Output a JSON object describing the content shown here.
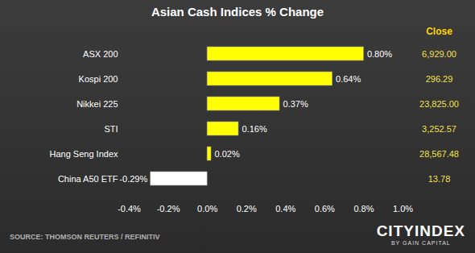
{
  "chart_data": {
    "type": "bar",
    "orientation": "horizontal",
    "title": "Asian Cash Indices % Change",
    "categories": [
      "ASX 200",
      "Kospi 200",
      "Nikkei 225",
      "STI",
      "Hang Seng Index",
      "China A50 ETF"
    ],
    "values": [
      0.8,
      0.64,
      0.37,
      0.16,
      0.02,
      -0.29
    ],
    "value_labels": [
      "0.80%",
      "0.64%",
      "0.37%",
      "0.16%",
      "0.02%",
      "-0.29%"
    ],
    "colors": [
      "#ffff00",
      "#ffff00",
      "#ffff00",
      "#ffff00",
      "#ffff00",
      "#ffffff"
    ],
    "xlim": [
      -0.4,
      1.0
    ],
    "xticks": [
      {
        "value": -0.4,
        "label": "-0.4%"
      },
      {
        "value": -0.2,
        "label": "-0.2%"
      },
      {
        "value": 0,
        "label": "0.0%"
      },
      {
        "value": 0.2,
        "label": "0.2%"
      },
      {
        "value": 0.4,
        "label": "0.4%"
      },
      {
        "value": 0.6,
        "label": "0.6%"
      },
      {
        "value": 0.8,
        "label": "0.8%"
      },
      {
        "value": 1.0,
        "label": "1.0%"
      }
    ],
    "grid": false,
    "data_labels": true,
    "close_header": "Close",
    "closes": [
      "6,929.00",
      "296.29",
      "23,825.00",
      "3,252.57",
      "28,567.48",
      "13.78"
    ],
    "source": "SOURCE: THOMSON REUTERS / REFINITIV",
    "brand": "CITYINDEX",
    "brand_tagline": "BY GAIN CAPITAL"
  }
}
